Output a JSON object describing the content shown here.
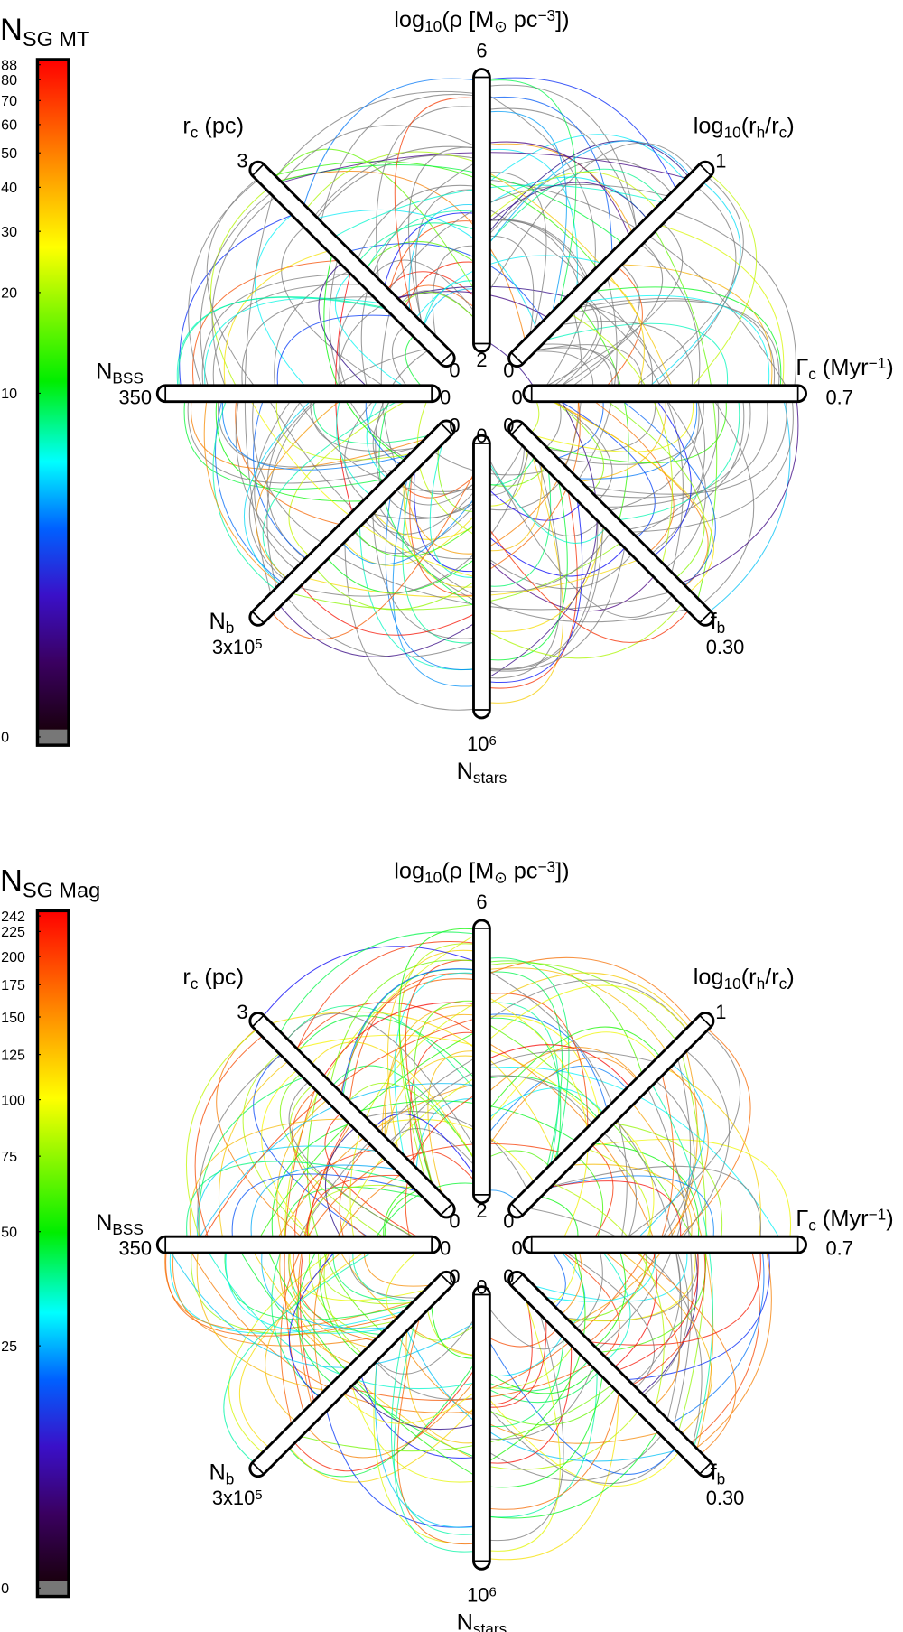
{
  "chart_data": [
    {
      "type": "hive",
      "colorbar": {
        "title": [
          "N",
          {
            "sub": "SG MT"
          }
        ],
        "lim": [
          0,
          88
        ],
        "ticks": [
          0,
          10,
          20,
          30,
          40,
          50,
          60,
          70,
          80,
          88
        ],
        "scale": "symlog",
        "linthresh": 1.3
      },
      "axes": [
        {
          "label": [
            "log",
            {
              "sub": "10"
            },
            "(ρ [M",
            {
              "sub": "⊙"
            },
            " pc",
            {
              "sup": "−3"
            },
            "])"
          ],
          "lim": [
            2,
            6
          ],
          "ticks": [
            2,
            6
          ]
        },
        {
          "label": [
            "log",
            {
              "sub": "10"
            },
            "(r",
            {
              "sub": "h"
            },
            "/r",
            {
              "sub": "c"
            },
            ")"
          ],
          "lim": [
            0,
            1
          ],
          "ticks": [
            0,
            1
          ]
        },
        {
          "label": [
            "Γ",
            {
              "sub": "c"
            },
            " (Myr",
            {
              "sup": "−1"
            },
            ")"
          ],
          "lim": [
            0,
            0.7
          ],
          "ticks": [
            0,
            0.7
          ]
        },
        {
          "label": [
            "f",
            {
              "sub": "b"
            }
          ],
          "lim": [
            0,
            0.3
          ],
          "ticks": [
            0,
            {
              "value": 0.3,
              "label": "0.30"
            }
          ]
        },
        {
          "label": [
            "N",
            {
              "sub": "stars"
            }
          ],
          "lim": [
            0,
            1000000
          ],
          "ticks": [
            0,
            {
              "value": 1000000,
              "label": [
                "10",
                {
                  "sup": "6"
                }
              ]
            }
          ]
        },
        {
          "label": [
            "N",
            {
              "sub": "b"
            }
          ],
          "lim": [
            0,
            300000
          ],
          "ticks": [
            0,
            {
              "value": 300000,
              "label": [
                "3x10",
                {
                  "sup": "5"
                }
              ]
            }
          ]
        },
        {
          "label": [
            "N",
            {
              "sub": "BSS"
            }
          ],
          "lim": [
            0,
            350
          ],
          "ticks": [
            0,
            350
          ]
        },
        {
          "label": [
            "r",
            {
              "sub": "c"
            },
            " (pc)"
          ],
          "lim": [
            0,
            3
          ],
          "ticks": [
            0,
            3
          ]
        }
      ]
    },
    {
      "type": "hive",
      "colorbar": {
        "title": [
          "N",
          {
            "sub": "SG Mag"
          }
        ],
        "lim": [
          0,
          242
        ],
        "ticks": [
          0,
          25,
          50,
          75,
          100,
          125,
          150,
          175,
          200,
          225,
          242
        ],
        "scale": "symlog",
        "linthresh": 13
      },
      "axes": [
        {
          "label": [
            "log",
            {
              "sub": "10"
            },
            "(ρ [M",
            {
              "sub": "⊙"
            },
            " pc",
            {
              "sup": "−3"
            },
            "])"
          ],
          "lim": [
            2,
            6
          ],
          "ticks": [
            2,
            6
          ]
        },
        {
          "label": [
            "log",
            {
              "sub": "10"
            },
            "(r",
            {
              "sub": "h"
            },
            "/r",
            {
              "sub": "c"
            },
            ")"
          ],
          "lim": [
            0,
            1
          ],
          "ticks": [
            0,
            1
          ]
        },
        {
          "label": [
            "Γ",
            {
              "sub": "c"
            },
            " (Myr",
            {
              "sup": "−1"
            },
            ")"
          ],
          "lim": [
            0,
            0.7
          ],
          "ticks": [
            0,
            0.7
          ]
        },
        {
          "label": [
            "f",
            {
              "sub": "b"
            }
          ],
          "lim": [
            0,
            0.3
          ],
          "ticks": [
            0,
            {
              "value": 0.3,
              "label": "0.30"
            }
          ]
        },
        {
          "label": [
            "N",
            {
              "sub": "stars"
            }
          ],
          "lim": [
            0,
            1000000
          ],
          "ticks": [
            0,
            {
              "value": 1000000,
              "label": [
                "10",
                {
                  "sup": "6"
                }
              ]
            }
          ]
        },
        {
          "label": [
            "N",
            {
              "sub": "b"
            }
          ],
          "lim": [
            0,
            300000
          ],
          "ticks": [
            0,
            {
              "value": 300000,
              "label": [
                "3x10",
                {
                  "sup": "5"
                }
              ]
            }
          ]
        },
        {
          "label": [
            "N",
            {
              "sub": "BSS"
            }
          ],
          "lim": [
            0,
            350
          ],
          "ticks": [
            0,
            350
          ]
        },
        {
          "label": [
            "r",
            {
              "sub": "c"
            },
            " (pc)"
          ],
          "lim": [
            0,
            3
          ],
          "ticks": [
            0,
            3
          ]
        }
      ]
    }
  ]
}
